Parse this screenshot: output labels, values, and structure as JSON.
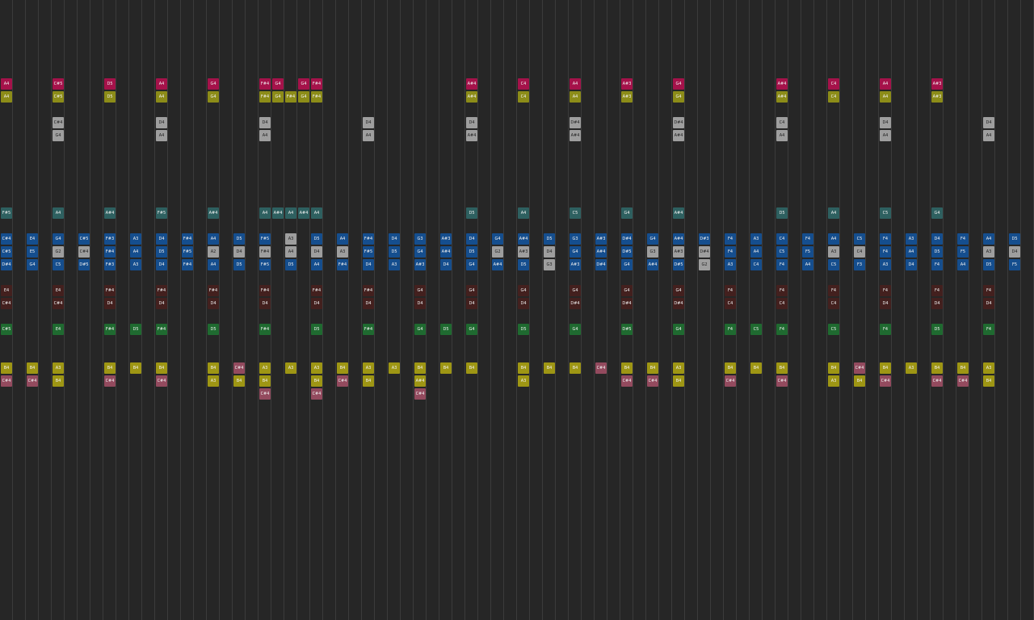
{
  "palette": {
    "crimson": "#a5124a",
    "olive": "#8c8c18",
    "gray": "#9e9e9e",
    "teal": "#2e6060",
    "blue": "#154e8e",
    "maroon": "#43201e",
    "green": "#1f6a30",
    "yellow": "#9e9614",
    "rose": "#934a5e"
  },
  "rows": [
    {
      "palette": "crimson",
      "notes": [
        [
          0,
          "A4"
        ],
        [
          4,
          "C#5"
        ],
        [
          8,
          "D5"
        ],
        [
          12,
          "A4"
        ],
        [
          16,
          "G4"
        ],
        [
          20,
          "F#4"
        ],
        [
          21,
          "G4"
        ],
        [
          23,
          "G4"
        ],
        [
          24,
          "F#4"
        ],
        [
          36,
          "A#4"
        ],
        [
          40,
          "C4"
        ],
        [
          44,
          "A4"
        ],
        [
          48,
          "A#3"
        ],
        [
          52,
          "G4"
        ],
        [
          60,
          "A#4"
        ],
        [
          64,
          "C4"
        ],
        [
          68,
          "A4"
        ],
        [
          72,
          "A#3"
        ]
      ]
    },
    {
      "palette": "olive",
      "notes": [
        [
          0,
          "A4"
        ],
        [
          4,
          "C#5"
        ],
        [
          8,
          "D5"
        ],
        [
          12,
          "A4"
        ],
        [
          16,
          "G4"
        ],
        [
          20,
          "F#4"
        ],
        [
          21,
          "G4"
        ],
        [
          22,
          "F#4"
        ],
        [
          23,
          "G4"
        ],
        [
          24,
          "F#4"
        ],
        [
          36,
          "A#4"
        ],
        [
          40,
          "C4"
        ],
        [
          44,
          "A4"
        ],
        [
          48,
          "A#3"
        ],
        [
          52,
          "G4"
        ],
        [
          60,
          "A#4"
        ],
        [
          64,
          "C4"
        ],
        [
          68,
          "A4"
        ],
        [
          72,
          "A#3"
        ]
      ]
    },
    {
      "palette": "gray",
      "notes": [
        [
          4,
          "C#4"
        ],
        [
          12,
          "D4"
        ],
        [
          20,
          "D4"
        ],
        [
          28,
          "D4"
        ],
        [
          36,
          "D4"
        ],
        [
          44,
          "D#4"
        ],
        [
          52,
          "D#4"
        ],
        [
          60,
          "C4"
        ],
        [
          68,
          "D4"
        ],
        [
          76,
          "D4"
        ]
      ]
    },
    {
      "palette": "gray",
      "notes": [
        [
          4,
          "G4"
        ],
        [
          12,
          "A4"
        ],
        [
          20,
          "A4"
        ],
        [
          28,
          "A4"
        ],
        [
          36,
          "A#4"
        ],
        [
          44,
          "A#4"
        ],
        [
          52,
          "A#4"
        ],
        [
          60,
          "A4"
        ],
        [
          68,
          "A4"
        ],
        [
          76,
          "A4"
        ]
      ]
    },
    {
      "palette": "teal",
      "notes": [
        [
          0,
          "F#5"
        ],
        [
          4,
          "A4"
        ],
        [
          8,
          "A#4"
        ],
        [
          12,
          "F#5"
        ],
        [
          16,
          "A#4"
        ],
        [
          20,
          "A4"
        ],
        [
          21,
          "A#4"
        ],
        [
          22,
          "A4"
        ],
        [
          23,
          "A#4"
        ],
        [
          24,
          "A4"
        ],
        [
          36,
          "D5"
        ],
        [
          40,
          "A4"
        ],
        [
          44,
          "C5"
        ],
        [
          48,
          "G4"
        ],
        [
          52,
          "A#4"
        ],
        [
          60,
          "D5"
        ],
        [
          64,
          "A4"
        ],
        [
          68,
          "C5"
        ],
        [
          72,
          "G4"
        ]
      ]
    },
    {
      "palette": "blue",
      "notes": [
        [
          0,
          "C#4"
        ],
        [
          2,
          "E4"
        ],
        [
          4,
          "G4"
        ],
        [
          6,
          "C#5"
        ],
        [
          8,
          "F#3"
        ],
        [
          10,
          "A3"
        ],
        [
          12,
          "D4"
        ],
        [
          14,
          "F#4"
        ],
        [
          16,
          "A4"
        ],
        [
          18,
          "D5"
        ],
        [
          20,
          "F#5"
        ],
        [
          22,
          "A3",
          "gray"
        ],
        [
          24,
          "D5"
        ],
        [
          26,
          "A4"
        ],
        [
          28,
          "F#4"
        ],
        [
          30,
          "D4"
        ],
        [
          32,
          "G3"
        ],
        [
          34,
          "A#3"
        ],
        [
          36,
          "D4"
        ],
        [
          38,
          "G4"
        ],
        [
          40,
          "A#4"
        ],
        [
          42,
          "D5"
        ],
        [
          44,
          "G3"
        ],
        [
          46,
          "A#3"
        ],
        [
          48,
          "D#4"
        ],
        [
          50,
          "G4"
        ],
        [
          52,
          "A#4"
        ],
        [
          54,
          "D#3"
        ],
        [
          56,
          "F4"
        ],
        [
          58,
          "A3"
        ],
        [
          60,
          "C4"
        ],
        [
          62,
          "F4"
        ],
        [
          64,
          "A4"
        ],
        [
          66,
          "C5"
        ],
        [
          68,
          "F4"
        ],
        [
          70,
          "A3"
        ],
        [
          72,
          "D4"
        ],
        [
          74,
          "F4"
        ],
        [
          76,
          "A4"
        ],
        [
          78,
          "D5"
        ]
      ]
    },
    {
      "palette": "blue",
      "notes": [
        [
          0,
          "C#5"
        ],
        [
          2,
          "E5"
        ],
        [
          4,
          "G2",
          "gray"
        ],
        [
          6,
          "C#4",
          "gray"
        ],
        [
          8,
          "F#4"
        ],
        [
          10,
          "A4"
        ],
        [
          12,
          "D5"
        ],
        [
          14,
          "F#5"
        ],
        [
          16,
          "A2",
          "gray"
        ],
        [
          18,
          "D4",
          "gray"
        ],
        [
          20,
          "F#4",
          "gray"
        ],
        [
          22,
          "A4",
          "gray"
        ],
        [
          24,
          "D4",
          "gray"
        ],
        [
          26,
          "A3",
          "gray"
        ],
        [
          28,
          "F#5"
        ],
        [
          30,
          "D5"
        ],
        [
          32,
          "G4"
        ],
        [
          34,
          "A#4"
        ],
        [
          36,
          "D5"
        ],
        [
          38,
          "G2",
          "gray"
        ],
        [
          40,
          "A#3",
          "gray"
        ],
        [
          42,
          "D4",
          "gray"
        ],
        [
          44,
          "G4"
        ],
        [
          46,
          "A#4"
        ],
        [
          48,
          "D#5"
        ],
        [
          50,
          "G3",
          "gray"
        ],
        [
          52,
          "A#3",
          "gray"
        ],
        [
          54,
          "D#4",
          "gray"
        ],
        [
          56,
          "F4"
        ],
        [
          58,
          "A4"
        ],
        [
          60,
          "C5"
        ],
        [
          62,
          "F5"
        ],
        [
          64,
          "A3",
          "gray"
        ],
        [
          66,
          "C4",
          "gray"
        ],
        [
          68,
          "F4"
        ],
        [
          70,
          "A4"
        ],
        [
          72,
          "D5"
        ],
        [
          74,
          "F5"
        ],
        [
          76,
          "A3",
          "gray"
        ],
        [
          78,
          "D4",
          "gray"
        ]
      ]
    },
    {
      "palette": "blue",
      "notes": [
        [
          0,
          "D#4"
        ],
        [
          2,
          "G4"
        ],
        [
          4,
          "C5"
        ],
        [
          6,
          "D#5"
        ],
        [
          8,
          "F#3"
        ],
        [
          10,
          "A3"
        ],
        [
          12,
          "D4"
        ],
        [
          14,
          "F#4"
        ],
        [
          16,
          "A4"
        ],
        [
          18,
          "D5"
        ],
        [
          20,
          "F#5"
        ],
        [
          22,
          "D5"
        ],
        [
          24,
          "A4"
        ],
        [
          26,
          "F#4"
        ],
        [
          28,
          "D4"
        ],
        [
          30,
          "A3"
        ],
        [
          32,
          "A#3"
        ],
        [
          34,
          "D4"
        ],
        [
          36,
          "G4"
        ],
        [
          38,
          "A#4"
        ],
        [
          40,
          "D5"
        ],
        [
          42,
          "G3",
          "gray"
        ],
        [
          44,
          "A#3"
        ],
        [
          46,
          "D#4"
        ],
        [
          48,
          "G4"
        ],
        [
          50,
          "A#4"
        ],
        [
          52,
          "D#5"
        ],
        [
          54,
          "G2",
          "gray"
        ],
        [
          56,
          "A3"
        ],
        [
          58,
          "C4"
        ],
        [
          60,
          "F4"
        ],
        [
          62,
          "A4"
        ],
        [
          64,
          "C5"
        ],
        [
          66,
          "F3"
        ],
        [
          68,
          "A3"
        ],
        [
          70,
          "D4"
        ],
        [
          72,
          "F4"
        ],
        [
          74,
          "A4"
        ],
        [
          76,
          "D5"
        ],
        [
          78,
          "F5"
        ]
      ]
    },
    {
      "palette": "maroon",
      "notes": [
        [
          0,
          "E4"
        ],
        [
          4,
          "E4"
        ],
        [
          8,
          "F#4"
        ],
        [
          12,
          "F#4"
        ],
        [
          16,
          "F#4"
        ],
        [
          20,
          "F#4"
        ],
        [
          24,
          "F#4"
        ],
        [
          28,
          "F#4"
        ],
        [
          32,
          "G4"
        ],
        [
          36,
          "G4"
        ],
        [
          40,
          "G4"
        ],
        [
          44,
          "G4"
        ],
        [
          48,
          "G4"
        ],
        [
          52,
          "G4"
        ],
        [
          56,
          "F4"
        ],
        [
          60,
          "F4"
        ],
        [
          64,
          "F4"
        ],
        [
          68,
          "F4"
        ],
        [
          72,
          "F4"
        ],
        [
          76,
          "F4"
        ]
      ]
    },
    {
      "palette": "maroon",
      "notes": [
        [
          0,
          "C#4"
        ],
        [
          4,
          "C#4"
        ],
        [
          8,
          "D4"
        ],
        [
          12,
          "D4"
        ],
        [
          16,
          "D4"
        ],
        [
          20,
          "D4"
        ],
        [
          24,
          "D4"
        ],
        [
          28,
          "D4"
        ],
        [
          32,
          "D4"
        ],
        [
          36,
          "D4"
        ],
        [
          40,
          "D4"
        ],
        [
          44,
          "D#4"
        ],
        [
          48,
          "D#4"
        ],
        [
          52,
          "D#4"
        ],
        [
          56,
          "C4"
        ],
        [
          60,
          "C4"
        ],
        [
          64,
          "C4"
        ],
        [
          68,
          "D4"
        ],
        [
          72,
          "D4"
        ],
        [
          76,
          "D4"
        ]
      ]
    },
    {
      "palette": "green",
      "notes": [
        [
          0,
          "C#5"
        ],
        [
          4,
          "E4"
        ],
        [
          8,
          "F#4"
        ],
        [
          10,
          "D5"
        ],
        [
          12,
          "F#4"
        ],
        [
          16,
          "D5"
        ],
        [
          20,
          "F#4"
        ],
        [
          24,
          "D5"
        ],
        [
          28,
          "F#4"
        ],
        [
          32,
          "G4"
        ],
        [
          34,
          "D5"
        ],
        [
          36,
          "G4"
        ],
        [
          40,
          "D5"
        ],
        [
          44,
          "G4"
        ],
        [
          48,
          "D#5"
        ],
        [
          52,
          "G4"
        ],
        [
          56,
          "F4"
        ],
        [
          58,
          "C5"
        ],
        [
          60,
          "F4"
        ],
        [
          64,
          "C5"
        ],
        [
          68,
          "F4"
        ],
        [
          72,
          "D5"
        ],
        [
          76,
          "F4"
        ]
      ]
    },
    {
      "palette": "yellow",
      "notes": [
        [
          0,
          "B4"
        ],
        [
          2,
          "B4"
        ],
        [
          4,
          "A3"
        ],
        [
          8,
          "B4"
        ],
        [
          10,
          "B4"
        ],
        [
          12,
          "B4"
        ],
        [
          16,
          "B4"
        ],
        [
          18,
          "C#4",
          "rose"
        ],
        [
          20,
          "A3"
        ],
        [
          22,
          "A3"
        ],
        [
          24,
          "A3"
        ],
        [
          26,
          "B4"
        ],
        [
          28,
          "A3"
        ],
        [
          30,
          "A3"
        ],
        [
          32,
          "B4"
        ],
        [
          34,
          "B4"
        ],
        [
          36,
          "B4"
        ],
        [
          40,
          "B4"
        ],
        [
          42,
          "B4"
        ],
        [
          44,
          "B4"
        ],
        [
          46,
          "C#4",
          "rose"
        ],
        [
          48,
          "B4"
        ],
        [
          50,
          "B4"
        ],
        [
          52,
          "A3"
        ],
        [
          56,
          "B4"
        ],
        [
          58,
          "B4"
        ],
        [
          60,
          "B4"
        ],
        [
          64,
          "B4"
        ],
        [
          66,
          "C#4",
          "rose"
        ],
        [
          68,
          "B4"
        ],
        [
          70,
          "A3"
        ],
        [
          72,
          "B4"
        ],
        [
          74,
          "B4"
        ],
        [
          76,
          "A3"
        ]
      ]
    },
    {
      "palette": "rose",
      "notes": [
        [
          0,
          "C#4"
        ],
        [
          2,
          "C#4"
        ],
        [
          4,
          "B4",
          "yellow"
        ],
        [
          8,
          "C#4"
        ],
        [
          12,
          "C#4"
        ],
        [
          16,
          "A3",
          "yellow"
        ],
        [
          18,
          "B4",
          "yellow"
        ],
        [
          20,
          "B4",
          "yellow"
        ],
        [
          24,
          "B4",
          "yellow"
        ],
        [
          26,
          "C#4"
        ],
        [
          28,
          "B4",
          "yellow"
        ],
        [
          32,
          "A#4",
          "yellow"
        ],
        [
          40,
          "A3",
          "yellow"
        ],
        [
          48,
          "C#4"
        ],
        [
          50,
          "C#4"
        ],
        [
          52,
          "B4",
          "yellow"
        ],
        [
          56,
          "C#4"
        ],
        [
          60,
          "C#4"
        ],
        [
          64,
          "A3",
          "yellow"
        ],
        [
          66,
          "B4",
          "yellow"
        ],
        [
          68,
          "C#4"
        ],
        [
          72,
          "C#4"
        ],
        [
          74,
          "C#4"
        ],
        [
          76,
          "B4",
          "yellow"
        ]
      ]
    },
    {
      "palette": "rose",
      "notes": [
        [
          20,
          "C#4"
        ],
        [
          24,
          "C#4"
        ],
        [
          32,
          "C#4"
        ]
      ]
    }
  ]
}
